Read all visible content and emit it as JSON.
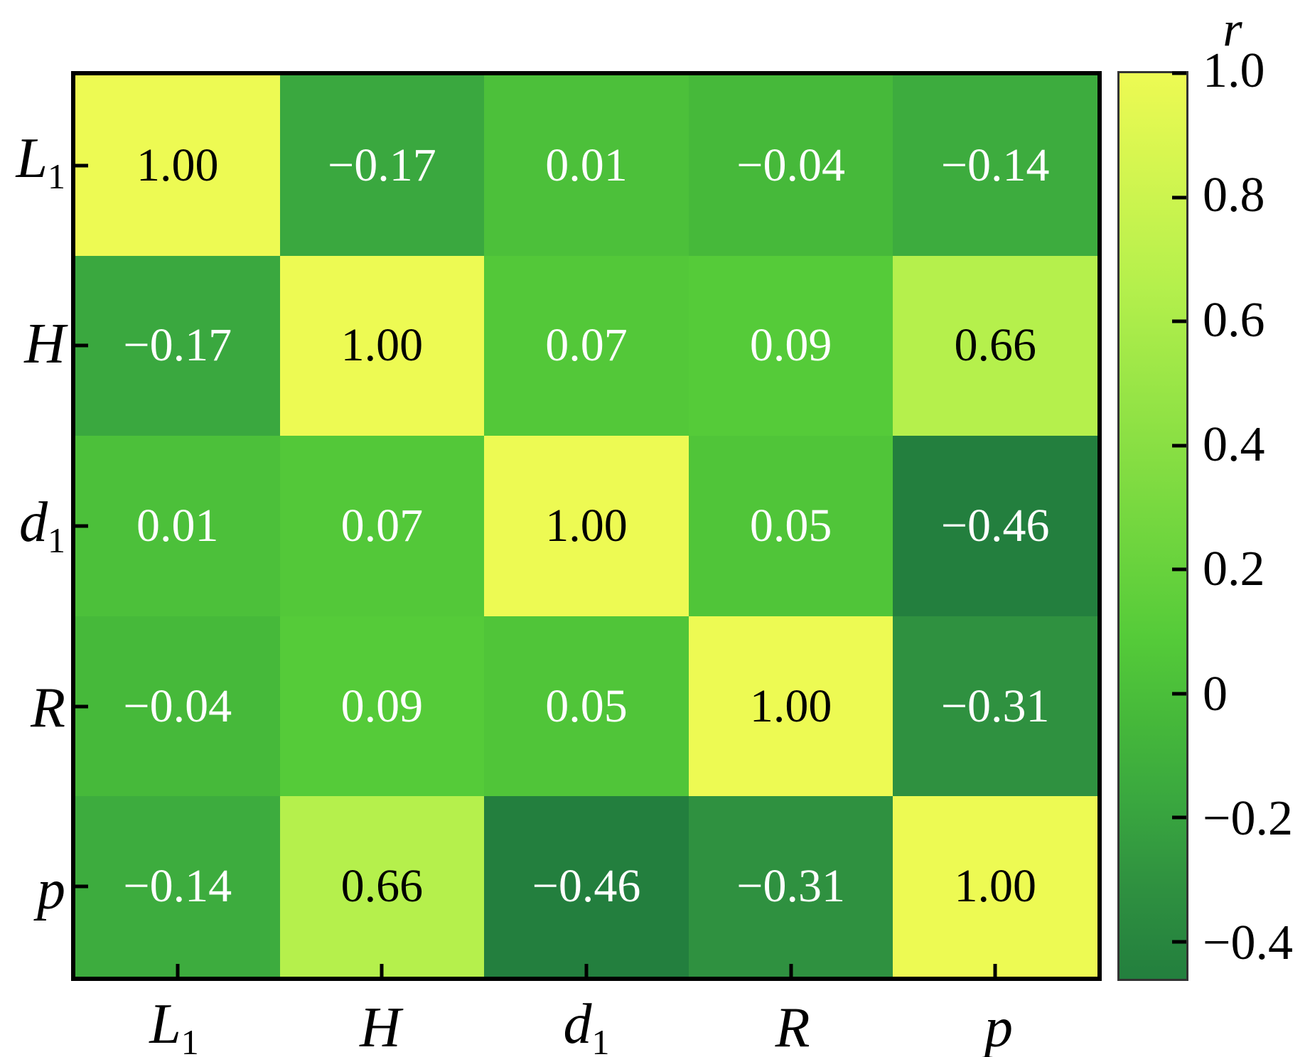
{
  "figure": {
    "background": "#ffffff",
    "frame_color": "#000000",
    "colorbar_border_color": "#333333"
  },
  "chart_data": {
    "type": "heatmap",
    "title": "",
    "categories": [
      "L1",
      "H",
      "d1",
      "R",
      "p"
    ],
    "variables": [
      {
        "id": "L1",
        "base": "L",
        "sub": "1"
      },
      {
        "id": "H",
        "base": "H",
        "sub": ""
      },
      {
        "id": "d1",
        "base": "d",
        "sub": "1"
      },
      {
        "id": "R",
        "base": "R",
        "sub": ""
      },
      {
        "id": "p",
        "base": "p",
        "sub": ""
      }
    ],
    "matrix": [
      [
        1.0,
        -0.17,
        0.01,
        -0.04,
        -0.14
      ],
      [
        -0.17,
        1.0,
        0.07,
        0.09,
        0.66
      ],
      [
        0.01,
        0.07,
        1.0,
        0.05,
        -0.46
      ],
      [
        -0.04,
        0.09,
        0.05,
        1.0,
        -0.31
      ],
      [
        -0.14,
        0.66,
        -0.46,
        -0.31,
        1.0
      ]
    ],
    "colorbar": {
      "label": "r",
      "vmin": -0.46,
      "vmax": 1.0,
      "ticks": [
        {
          "value": 1.0,
          "label": "1.0"
        },
        {
          "value": 0.8,
          "label": "0.8"
        },
        {
          "value": 0.6,
          "label": "0.6"
        },
        {
          "value": 0.4,
          "label": "0.4"
        },
        {
          "value": 0.2,
          "label": "0.2"
        },
        {
          "value": 0.0,
          "label": "0"
        },
        {
          "value": -0.2,
          "label": "−0.2"
        },
        {
          "value": -0.4,
          "label": "−0.4"
        }
      ]
    },
    "colormap_stops": [
      [
        0.0,
        "#237f3e"
      ],
      [
        0.103,
        "#2f9140"
      ],
      [
        0.199,
        "#3aa83f"
      ],
      [
        0.288,
        "#46b93a"
      ],
      [
        0.377,
        "#55cb39"
      ],
      [
        0.767,
        "#b5f04c"
      ],
      [
        1.0,
        "#edfa53"
      ]
    ],
    "cell_text_colors": {
      "dark": "#000000",
      "light": "#ffffff"
    },
    "minus_sign": "−"
  }
}
